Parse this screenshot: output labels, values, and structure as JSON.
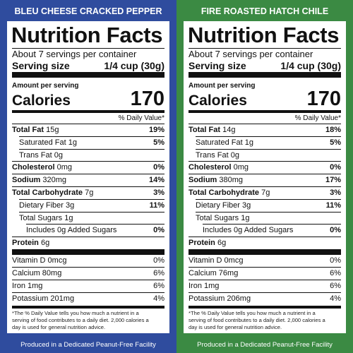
{
  "labels": [
    {
      "header": "BLEU CHEESE CRACKED PEPPER",
      "title": "Nutrition Facts",
      "servings": "About 7 servings per container",
      "serving_size_label": "Serving size",
      "serving_size_value": "1/4 cup (30g)",
      "amount_per_serving": "Amount per serving",
      "calories_label": "Calories",
      "calories": 170,
      "daily_value_header": "% Daily Value*",
      "nutrients": [
        {
          "name": "Total Fat",
          "amount": "15g",
          "dv": "19%",
          "style": "main"
        },
        {
          "name": "Saturated Fat",
          "amount": "1g",
          "dv": "5%",
          "style": "sub"
        },
        {
          "name": "Trans Fat",
          "amount": "0g",
          "style": "sub"
        },
        {
          "name": "Cholesterol",
          "amount": "0mg",
          "dv": "0%",
          "style": "main"
        },
        {
          "name": "Sodium",
          "amount": "320mg",
          "dv": "14%",
          "style": "main"
        },
        {
          "name": "Total Carbohydrate",
          "amount": "7g",
          "dv": "3%",
          "style": "main"
        },
        {
          "name": "Dietary Fiber",
          "amount": "3g",
          "dv": "11%",
          "style": "sub"
        },
        {
          "name": "Total Sugars",
          "amount": "1g",
          "style": "sub"
        },
        {
          "name": "Includes 0g Added Sugars",
          "dv": "0%",
          "style": "subsub"
        },
        {
          "name": "Protein",
          "amount": "6g",
          "style": "main"
        }
      ],
      "vitamins": [
        {
          "name": "Vitamin D",
          "amount": "0mcg",
          "dv": "0%"
        },
        {
          "name": "Calcium",
          "amount": "80mg",
          "dv": "6%"
        },
        {
          "name": "Iron",
          "amount": "1mg",
          "dv": "6%"
        },
        {
          "name": "Potassium",
          "amount": "201mg",
          "dv": "4%"
        }
      ],
      "footnote": [
        "*The % Daily Value tells you how much a nutrient in a",
        "serving of food contributes to a daily diet. 2,000 calories a",
        "day is used for general nutrition advice."
      ],
      "footer": "Produced in a Dedicated Peanut-Free Facility",
      "color": "#2f4c9e"
    },
    {
      "header": "FIRE ROASTED HATCH CHILE",
      "title": "Nutrition Facts",
      "servings": "About 7 servings per container",
      "serving_size_label": "Serving size",
      "serving_size_value": "1/4 cup (30g)",
      "amount_per_serving": "Amount per serving",
      "calories_label": "Calories",
      "calories": 170,
      "daily_value_header": "% Daily Value*",
      "nutrients": [
        {
          "name": "Total Fat",
          "amount": "14g",
          "dv": "18%",
          "style": "main"
        },
        {
          "name": "Saturated Fat",
          "amount": "1g",
          "dv": "5%",
          "style": "sub"
        },
        {
          "name": "Trans Fat",
          "amount": "0g",
          "style": "sub"
        },
        {
          "name": "Cholesterol",
          "amount": "0mg",
          "dv": "0%",
          "style": "main"
        },
        {
          "name": "Sodium",
          "amount": "380mg",
          "dv": "17%",
          "style": "main"
        },
        {
          "name": "Total Carbohydrate",
          "amount": "7g",
          "dv": "3%",
          "style": "main"
        },
        {
          "name": "Dietary Fiber",
          "amount": "3g",
          "dv": "11%",
          "style": "sub"
        },
        {
          "name": "Total Sugars",
          "amount": "1g",
          "style": "sub"
        },
        {
          "name": "Includes 0g Added Sugars",
          "dv": "0%",
          "style": "subsub"
        },
        {
          "name": "Protein",
          "amount": "6g",
          "style": "main"
        }
      ],
      "vitamins": [
        {
          "name": "Vitamin D",
          "amount": "0mcg",
          "dv": "0%"
        },
        {
          "name": "Calcium",
          "amount": "76mg",
          "dv": "6%"
        },
        {
          "name": "Iron",
          "amount": "1mg",
          "dv": "6%"
        },
        {
          "name": "Potassium",
          "amount": "206mg",
          "dv": "4%"
        }
      ],
      "footnote": [
        "*The % Daily Value tells you how much a nutrient in a",
        "serving of food contributes to a daily diet. 2,000 calories a",
        "day is used for general nutrition advice."
      ],
      "footer": "Produced in a Dedicated Peanut-Free Facility",
      "color": "#3b8a43"
    }
  ]
}
